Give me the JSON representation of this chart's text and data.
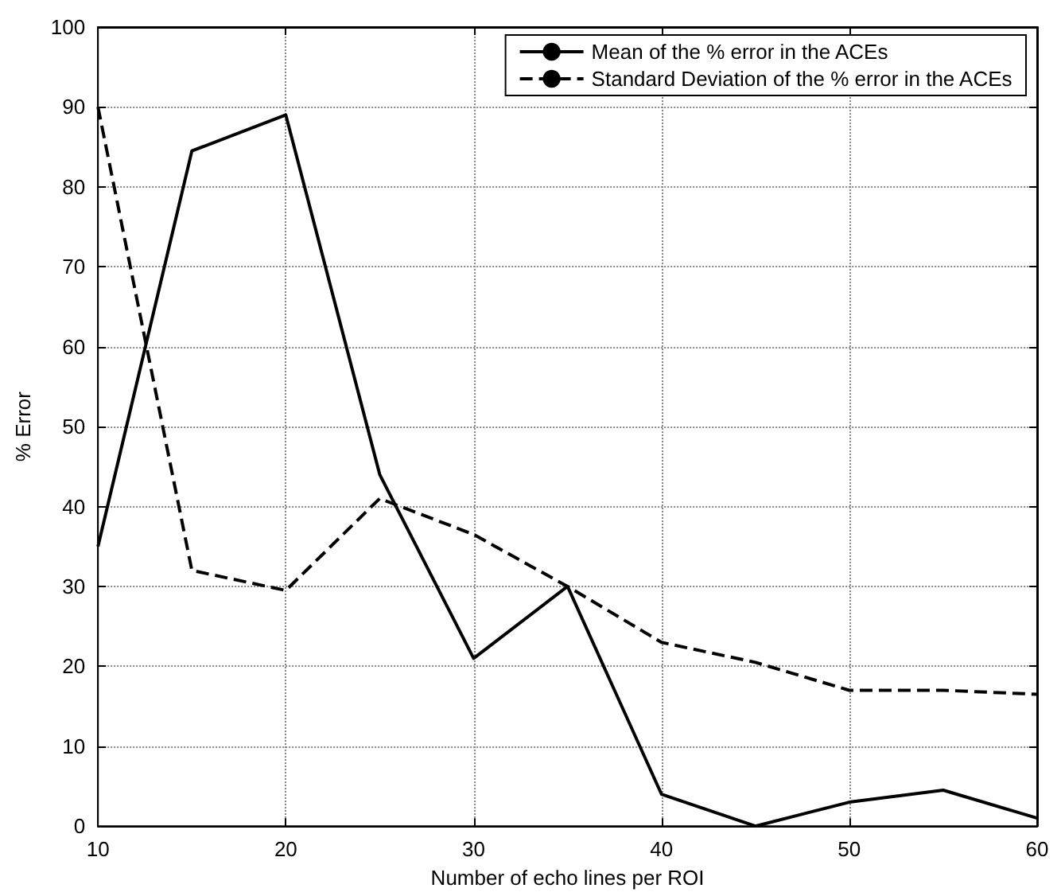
{
  "chart_data": {
    "type": "line",
    "xlabel": "Number of echo lines per ROI",
    "ylabel": "% Error",
    "x": [
      10,
      15,
      20,
      25,
      30,
      35,
      40,
      45,
      50,
      55,
      60
    ],
    "series": [
      {
        "name": "Mean of the % error in the ACEs",
        "color": "#000000",
        "line_style": "solid",
        "values": [
          35,
          84.5,
          89,
          44,
          21,
          30,
          4,
          0,
          3,
          4.5,
          1
        ]
      },
      {
        "name": "Standard Deviation of the % error in the ACEs",
        "color": "#000000",
        "line_style": "dashed",
        "values": [
          90,
          32,
          29.5,
          41,
          36.5,
          30,
          23,
          20.5,
          17,
          17,
          16.5
        ]
      }
    ],
    "xlim": [
      10,
      60
    ],
    "xticks": [
      10,
      20,
      30,
      40,
      50,
      60
    ],
    "ylim": [
      0,
      100
    ],
    "yticks": [
      0,
      10,
      20,
      30,
      40,
      50,
      60,
      70,
      80,
      90,
      100
    ],
    "grid": true,
    "legend": "top right",
    "marker": "none"
  }
}
